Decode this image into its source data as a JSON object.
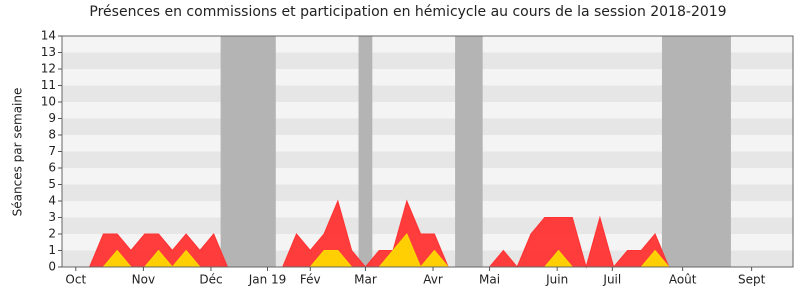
{
  "chart_data": {
    "type": "area",
    "title": "Présences en commissions et participation en hémicycle au cours de la session 2018-2019",
    "y_label": "Séances par semaine",
    "x": [
      2,
      3,
      4,
      5,
      6,
      7,
      8,
      9,
      10,
      11,
      12,
      13,
      14,
      15,
      16,
      17,
      18,
      19,
      20,
      21,
      22,
      23,
      24,
      25,
      26,
      27,
      28,
      29,
      30,
      31,
      32,
      33,
      34,
      35,
      36,
      37,
      38,
      39,
      40,
      41,
      42,
      43,
      44
    ],
    "series": [
      {
        "color": "#ff3333",
        "values": [
          0,
          2,
          2,
          1,
          2,
          2,
          1,
          2,
          1,
          2,
          0,
          0,
          0,
          0,
          0,
          2,
          1,
          2,
          4,
          1,
          0,
          1,
          1,
          4,
          2,
          2,
          0,
          0,
          0,
          0,
          1,
          0,
          2,
          3,
          3,
          3,
          0,
          3,
          0,
          1,
          1,
          2,
          0
        ]
      },
      {
        "color": "#ffd700",
        "values": [
          0,
          0,
          1,
          0,
          0,
          1,
          0,
          1,
          0,
          0,
          0,
          0,
          0,
          0,
          0,
          0,
          0,
          1,
          1,
          0,
          0,
          0,
          1,
          2,
          0,
          1,
          0,
          0,
          0,
          0,
          0,
          0,
          0,
          0,
          1,
          0,
          0,
          0,
          0,
          0,
          0,
          1,
          0
        ]
      }
    ],
    "shaded_ranges": [
      [
        11.5,
        15.5
      ],
      [
        21.5,
        22.5
      ],
      [
        28.5,
        30.5
      ],
      [
        43.5,
        48.5
      ]
    ],
    "shade_color": "#b4b4b4",
    "xlim": [
      0,
      53
    ],
    "xticks": [
      {
        "value": 1,
        "label": "Oct"
      },
      {
        "value": 5.9,
        "label": "Nov"
      },
      {
        "value": 10.8,
        "label": "Déc"
      },
      {
        "value": 14.9,
        "label": "Jan 19"
      },
      {
        "value": 18,
        "label": "Fév"
      },
      {
        "value": 22,
        "label": "Mar"
      },
      {
        "value": 26.9,
        "label": "Avr"
      },
      {
        "value": 31,
        "label": "Mai"
      },
      {
        "value": 35.9,
        "label": "Juin"
      },
      {
        "value": 39.9,
        "label": "Juil"
      },
      {
        "value": 45,
        "label": "Août"
      },
      {
        "value": 50,
        "label": "Sept"
      }
    ],
    "ylim": [
      0,
      14
    ],
    "yticks": [
      0,
      1,
      2,
      3,
      4,
      5,
      6,
      7,
      8,
      9,
      10,
      11,
      12,
      13,
      14
    ],
    "grid": true
  }
}
